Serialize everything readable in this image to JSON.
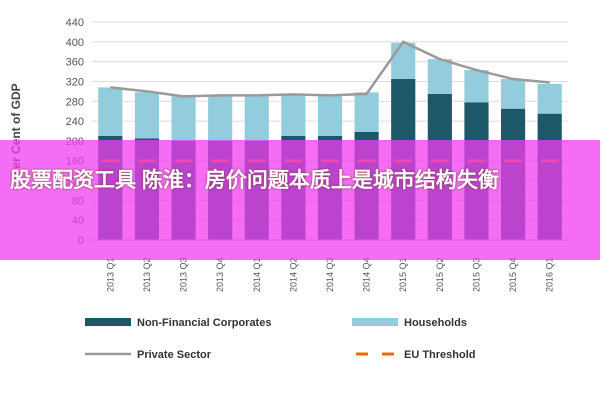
{
  "chart_data": {
    "type": "bar",
    "stacked": true,
    "ylabel": "Per Cent of GDP",
    "categories": [
      "2013 Q1",
      "2013 Q2",
      "2013 Q3",
      "2013 Q4",
      "2014 Q1",
      "2014 Q2",
      "2014 Q3",
      "2014 Q4",
      "2015 Q1",
      "2015 Q2",
      "2015 Q3",
      "2015 Q4",
      "2016 Q1"
    ],
    "series": [
      {
        "name": "Non-Financial Corporates",
        "type": "bar",
        "color": "#1d5868",
        "values": [
          210,
          205,
          200,
          200,
          200,
          210,
          210,
          218,
          325,
          295,
          278,
          265,
          255
        ]
      },
      {
        "name": "Households",
        "type": "bar",
        "color": "#93cddd",
        "values": [
          98,
          93,
          90,
          92,
          92,
          84,
          82,
          80,
          73,
          70,
          65,
          60,
          60
        ]
      },
      {
        "name": "Private Sector",
        "type": "line",
        "color": "#9a9a9a",
        "values": [
          308,
          300,
          290,
          292,
          292,
          294,
          292,
          295,
          400,
          365,
          343,
          325,
          318
        ]
      },
      {
        "name": "EU Threshold",
        "type": "line",
        "dashed": true,
        "color": "#e46c0a",
        "values": [
          160,
          160,
          160,
          160,
          160,
          160,
          160,
          160,
          160,
          160,
          160,
          160,
          160
        ]
      }
    ],
    "ylim": [
      0,
      440
    ],
    "yticks": [
      0,
      40,
      80,
      120,
      160,
      200,
      240,
      280,
      320,
      360,
      400,
      440
    ],
    "grid": true
  },
  "overlay_text": "股票配资工具 陈淮：房价问题本质上是城市结构失衡"
}
